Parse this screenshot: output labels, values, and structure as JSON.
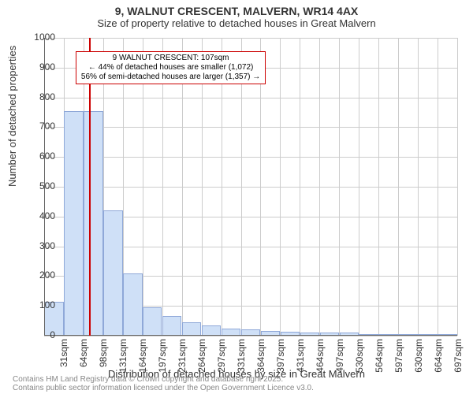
{
  "title": "9, WALNUT CRESCENT, MALVERN, WR14 4AX",
  "subtitle": "Size of property relative to detached houses in Great Malvern",
  "y_axis": {
    "label": "Number of detached properties",
    "ticks": [
      0,
      100,
      200,
      300,
      400,
      500,
      600,
      700,
      800,
      900,
      1000
    ],
    "min": 0,
    "max": 1000
  },
  "x_axis": {
    "label": "Distribution of detached houses by size in Great Malvern",
    "tick_labels": [
      "31sqm",
      "64sqm",
      "98sqm",
      "131sqm",
      "164sqm",
      "197sqm",
      "231sqm",
      "264sqm",
      "297sqm",
      "331sqm",
      "364sqm",
      "397sqm",
      "431sqm",
      "464sqm",
      "497sqm",
      "530sqm",
      "564sqm",
      "597sqm",
      "630sqm",
      "664sqm",
      "697sqm"
    ]
  },
  "bars": {
    "values": [
      115,
      755,
      755,
      420,
      210,
      95,
      65,
      45,
      35,
      25,
      20,
      15,
      12,
      10,
      10,
      10,
      5,
      5,
      5,
      5,
      5
    ],
    "fill": "#cfe0f7",
    "stroke": "#8fa8d8",
    "width_fraction": 0.98
  },
  "marker": {
    "bin_index": 2,
    "position_in_bin": 0.27,
    "color": "#cc0000"
  },
  "callout": {
    "lines": [
      "9 WALNUT CRESCENT: 107sqm",
      "← 44% of detached houses are smaller (1,072)",
      "56% of semi-detached houses are larger (1,357) →"
    ],
    "border_color": "#cc0000",
    "left_bin": 1.6,
    "top_value": 955,
    "font_size": 10
  },
  "grid": {
    "color": "#cccccc"
  },
  "fonts": {
    "title_size": 14,
    "subtitle_size": 13,
    "axis_label_size": 13,
    "tick_size": 12,
    "footer_size": 10
  },
  "footer": {
    "line1": "Contains HM Land Registry data © Crown copyright and database right 2025.",
    "line2": "Contains public sector information licensed under the Open Government Licence v3.0."
  }
}
